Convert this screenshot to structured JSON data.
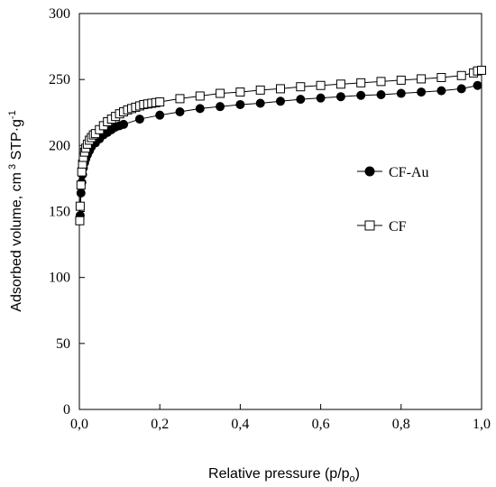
{
  "chart_data": {
    "type": "scatter",
    "title": "",
    "xlabel": {
      "main": "Relative pressure (p/p",
      "sub": "o",
      "end": ")"
    },
    "ylabel": {
      "pre": "Adsorbed volume, cm",
      "sup1": "3",
      "mid": " STP·g",
      "sup2": "-1"
    },
    "xlim": [
      0,
      1
    ],
    "ylim": [
      0,
      300
    ],
    "x_ticks": [
      0,
      0.2,
      0.4,
      0.6,
      0.8,
      1.0
    ],
    "x_tick_labels": [
      "0,0",
      "0,2",
      "0,4",
      "0,6",
      "0,8",
      "1,0"
    ],
    "y_ticks": [
      0,
      50,
      100,
      150,
      200,
      250,
      300
    ],
    "y_tick_labels": [
      "0",
      "50",
      "100",
      "150",
      "200",
      "250",
      "300"
    ],
    "grid": false,
    "legend_position": "right-middle",
    "series": [
      {
        "name": "CF-Au",
        "marker": "filled-circle",
        "color": "#000000",
        "points": [
          [
            0.001,
            144
          ],
          [
            0.002,
            147
          ],
          [
            0.004,
            164
          ],
          [
            0.006,
            172
          ],
          [
            0.008,
            178
          ],
          [
            0.01,
            183
          ],
          [
            0.013,
            187
          ],
          [
            0.016,
            190
          ],
          [
            0.02,
            193
          ],
          [
            0.025,
            196
          ],
          [
            0.03,
            199
          ],
          [
            0.04,
            202
          ],
          [
            0.05,
            205
          ],
          [
            0.06,
            208
          ],
          [
            0.07,
            210
          ],
          [
            0.08,
            212
          ],
          [
            0.09,
            214
          ],
          [
            0.1,
            215
          ],
          [
            0.11,
            216
          ],
          [
            0.15,
            220
          ],
          [
            0.2,
            223
          ],
          [
            0.25,
            225.5
          ],
          [
            0.3,
            228
          ],
          [
            0.35,
            229.5
          ],
          [
            0.4,
            231
          ],
          [
            0.45,
            232
          ],
          [
            0.5,
            233.5
          ],
          [
            0.55,
            235
          ],
          [
            0.6,
            236
          ],
          [
            0.65,
            237
          ],
          [
            0.7,
            238
          ],
          [
            0.75,
            238.5
          ],
          [
            0.8,
            239.5
          ],
          [
            0.85,
            240.5
          ],
          [
            0.9,
            241.5
          ],
          [
            0.95,
            243
          ],
          [
            0.99,
            245.5
          ]
        ]
      },
      {
        "name": "CF",
        "marker": "open-square",
        "color": "#000000",
        "points": [
          [
            0.001,
            143
          ],
          [
            0.002,
            154
          ],
          [
            0.004,
            170
          ],
          [
            0.006,
            180
          ],
          [
            0.008,
            186
          ],
          [
            0.01,
            191
          ],
          [
            0.013,
            195
          ],
          [
            0.016,
            198
          ],
          [
            0.02,
            201
          ],
          [
            0.025,
            204
          ],
          [
            0.03,
            206
          ],
          [
            0.035,
            208
          ],
          [
            0.04,
            209
          ],
          [
            0.05,
            212
          ],
          [
            0.06,
            215
          ],
          [
            0.07,
            218
          ],
          [
            0.08,
            220
          ],
          [
            0.09,
            222
          ],
          [
            0.1,
            224
          ],
          [
            0.11,
            225.5
          ],
          [
            0.12,
            227
          ],
          [
            0.13,
            228
          ],
          [
            0.14,
            229
          ],
          [
            0.15,
            230
          ],
          [
            0.16,
            231
          ],
          [
            0.17,
            231.5
          ],
          [
            0.18,
            232
          ],
          [
            0.19,
            232.5
          ],
          [
            0.2,
            233
          ],
          [
            0.25,
            235.5
          ],
          [
            0.3,
            237.5
          ],
          [
            0.35,
            239.5
          ],
          [
            0.4,
            240.5
          ],
          [
            0.45,
            242
          ],
          [
            0.5,
            243
          ],
          [
            0.55,
            244.5
          ],
          [
            0.6,
            245.5
          ],
          [
            0.65,
            246.5
          ],
          [
            0.7,
            247.5
          ],
          [
            0.75,
            248.5
          ],
          [
            0.8,
            249.5
          ],
          [
            0.85,
            250.5
          ],
          [
            0.9,
            251.5
          ],
          [
            0.95,
            253
          ],
          [
            0.98,
            255
          ],
          [
            0.99,
            256.5
          ],
          [
            1.0,
            257
          ]
        ]
      }
    ]
  }
}
